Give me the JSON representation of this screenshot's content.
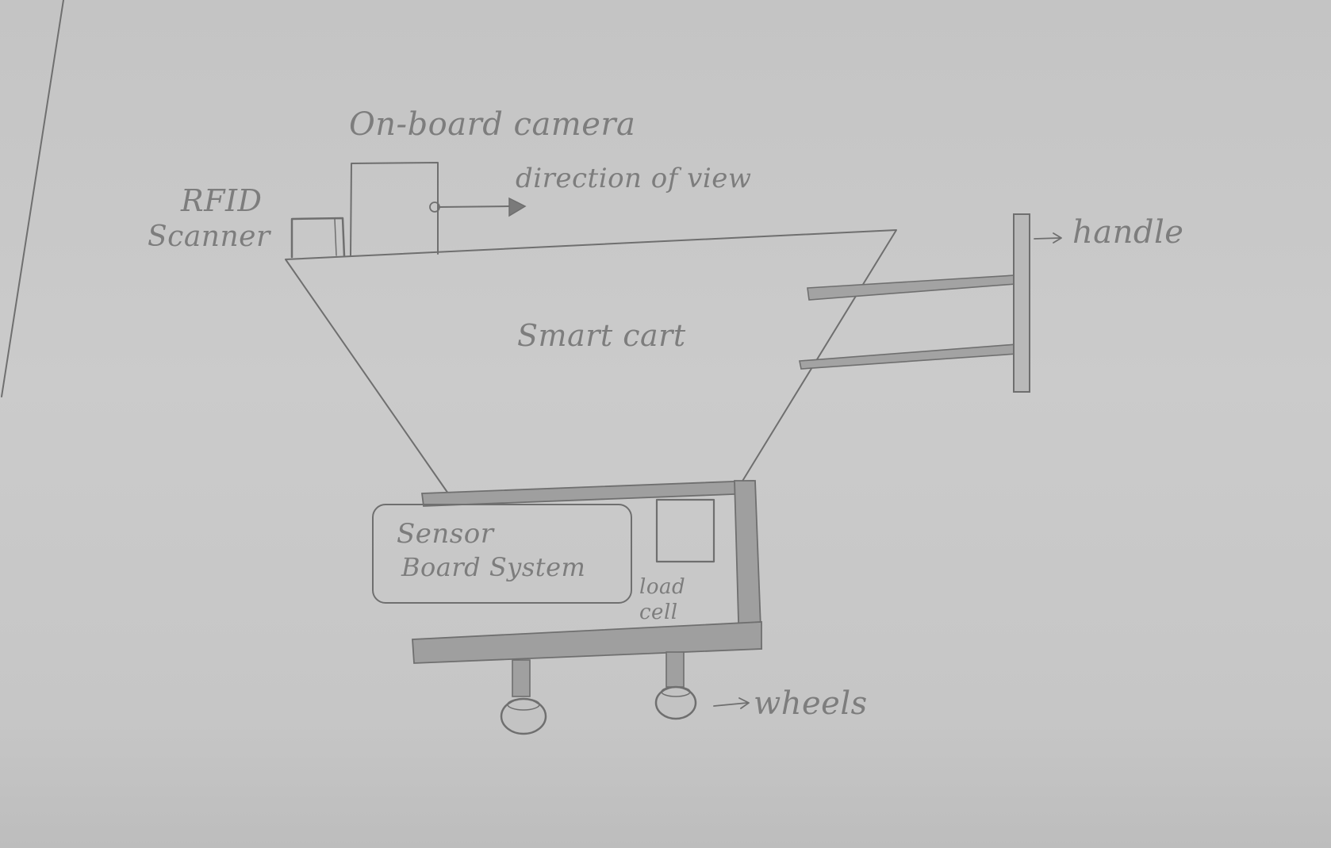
{
  "diagram": {
    "labels": {
      "camera": "On-board camera",
      "view_direction": "direction of view",
      "rfid_line1": "RFID",
      "rfid_line2": "Scanner",
      "handle": "handle",
      "cart": "Smart cart",
      "sensor_line1": "Sensor",
      "sensor_line2": "Board System",
      "load_cell_line1": "load",
      "load_cell_line2": "cell",
      "wheels": "wheels"
    },
    "colors": {
      "paper": "#c9c9c9",
      "pencil": "#6f6f6f",
      "shading": "#9a9a9a"
    }
  }
}
